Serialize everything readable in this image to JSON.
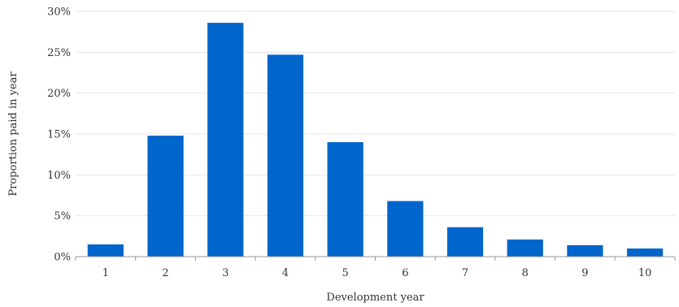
{
  "chart_data": {
    "type": "bar",
    "title": "",
    "xlabel": "Development year",
    "ylabel": "Proportion paid in year",
    "categories": [
      "1",
      "2",
      "3",
      "4",
      "5",
      "6",
      "7",
      "8",
      "9",
      "10"
    ],
    "values": [
      1.5,
      14.8,
      28.6,
      24.7,
      14.0,
      6.8,
      3.6,
      2.1,
      1.4,
      1.0
    ],
    "ylim": [
      0,
      30
    ],
    "yticks": [
      0,
      5,
      10,
      15,
      20,
      25,
      30
    ],
    "ytick_labels": [
      "0%",
      "5%",
      "10%",
      "15%",
      "20%",
      "25%",
      "30%"
    ],
    "grid": true,
    "legend": "none",
    "bar_color": "#0066cc"
  }
}
